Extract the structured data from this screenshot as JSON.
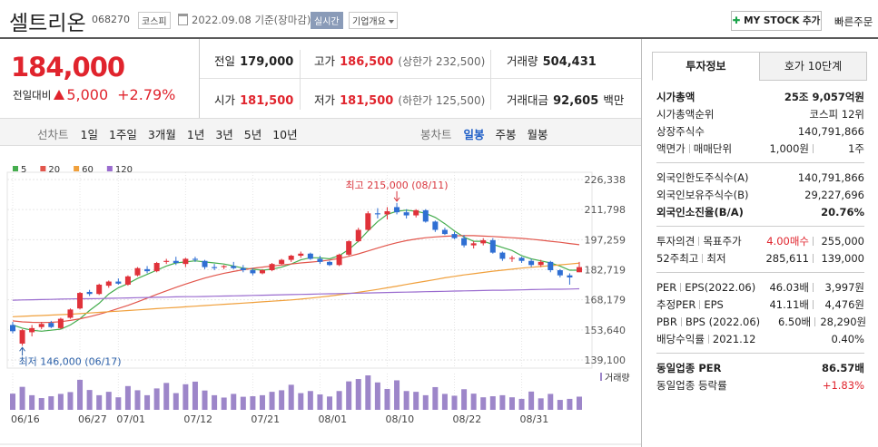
{
  "header": {
    "name": "셀트리온",
    "code": "068270",
    "market": "코스피",
    "date": "2022.09.08",
    "date_note": "기준(장마감)",
    "realtime": "실시간",
    "company_info": "기업개요",
    "my_stock": "MY STOCK 추가",
    "quick_order": "빠른주문"
  },
  "price": {
    "current": "184,000",
    "change_label": "전일대비",
    "change": "5,000",
    "rate": "+2.79%"
  },
  "quote": {
    "prev_close": {
      "label": "전일",
      "value": "179,000"
    },
    "high": {
      "label": "고가",
      "value": "186,500",
      "note": "(상한가 232,500)"
    },
    "volume": {
      "label": "거래량",
      "value": "504,431"
    },
    "open": {
      "label": "시가",
      "value": "181,500"
    },
    "low": {
      "label": "저가",
      "value": "181,500",
      "note": "(하한가 125,500)"
    },
    "amount": {
      "label": "거래대금",
      "value": "92,605",
      "unit": "백만"
    }
  },
  "periods": {
    "line_chart": "선차트",
    "line_options": [
      "1일",
      "1주일",
      "3개월",
      "1년",
      "3년",
      "5년",
      "10년"
    ],
    "candle_chart": "봉차트",
    "candle_options": [
      "일봉",
      "주봉",
      "월봉"
    ],
    "active_candle_option": 0
  },
  "chart_data": {
    "type": "candlestick",
    "x": [
      "06/16",
      null,
      null,
      null,
      null,
      null,
      null,
      "06/27",
      null,
      null,
      null,
      "07/01",
      null,
      null,
      null,
      null,
      null,
      null,
      "07/12",
      null,
      null,
      null,
      null,
      null,
      null,
      "07/21",
      null,
      null,
      null,
      null,
      null,
      null,
      "08/01",
      null,
      null,
      null,
      null,
      null,
      null,
      "08/10",
      null,
      null,
      null,
      null,
      null,
      null,
      "08/22",
      null,
      null,
      null,
      null,
      null,
      null,
      "08/31",
      null,
      null,
      null,
      null,
      null,
      null
    ],
    "open": [
      156000,
      147000,
      152500,
      155000,
      157000,
      154500,
      159500,
      164000,
      172000,
      171000,
      175000,
      177000,
      175500,
      180000,
      183000,
      182000,
      186500,
      187000,
      185500,
      188000,
      187000,
      184000,
      184000,
      184500,
      183500,
      182500,
      181000,
      182500,
      185500,
      187500,
      189500,
      190500,
      188000,
      186500,
      185000,
      190000,
      196500,
      202000,
      210000,
      209500,
      213000,
      210500,
      209000,
      211500,
      206000,
      202000,
      200000,
      198000,
      194500,
      195500,
      197000,
      191000,
      188000,
      188500,
      187000,
      185000,
      186500,
      182500,
      180000,
      181500
    ],
    "high": [
      157500,
      154000,
      156000,
      157500,
      158000,
      159500,
      164000,
      172000,
      173000,
      176000,
      177500,
      178500,
      180000,
      184000,
      184500,
      186500,
      188000,
      189000,
      188500,
      189000,
      187500,
      185500,
      185000,
      186500,
      185000,
      183500,
      183000,
      186000,
      188000,
      190000,
      191500,
      191000,
      189500,
      187000,
      190500,
      197000,
      203000,
      211000,
      212500,
      213000,
      215000,
      212000,
      212000,
      212000,
      206500,
      203000,
      201000,
      199500,
      196500,
      198000,
      198000,
      191500,
      189500,
      189000,
      188000,
      187500,
      187000,
      183000,
      181000,
      186500
    ],
    "low": [
      152000,
      146000,
      150500,
      154000,
      154500,
      154000,
      159000,
      163500,
      170000,
      170500,
      174000,
      175500,
      175000,
      179500,
      181000,
      181500,
      185500,
      185000,
      184000,
      186500,
      183000,
      182500,
      183000,
      183000,
      181500,
      180000,
      180500,
      182000,
      185000,
      186500,
      188500,
      187500,
      185500,
      184500,
      184500,
      189500,
      196000,
      201500,
      207500,
      207000,
      209500,
      207500,
      208000,
      205500,
      201000,
      199500,
      197500,
      193500,
      193000,
      194500,
      190500,
      187000,
      186500,
      186000,
      184000,
      184000,
      181500,
      179000,
      175500,
      181500
    ],
    "close": [
      153000,
      153500,
      154500,
      156500,
      155000,
      159000,
      163500,
      171500,
      171000,
      175500,
      177000,
      176000,
      179500,
      183500,
      182000,
      186000,
      187000,
      186000,
      188000,
      187500,
      184000,
      183500,
      184500,
      183500,
      182500,
      181000,
      182500,
      185500,
      187500,
      189500,
      190500,
      188000,
      186500,
      185000,
      190000,
      196500,
      202000,
      210000,
      209500,
      211000,
      210500,
      209000,
      211500,
      206000,
      202000,
      200000,
      198000,
      194500,
      195500,
      197000,
      191000,
      188000,
      188500,
      187000,
      185000,
      186500,
      182500,
      180000,
      179000,
      184000
    ],
    "up_color": "#e0323a",
    "down_color": "#2f6fd3",
    "series": [
      {
        "name": "5",
        "color": "#45ad4e",
        "values": [
          156000,
          154500,
          153500,
          153000,
          153500,
          154000,
          156000,
          159000,
          163000,
          166500,
          171000,
          174000,
          176000,
          178500,
          180500,
          182500,
          184500,
          186000,
          186500,
          187000,
          186500,
          186000,
          185500,
          184500,
          183500,
          183000,
          182500,
          183000,
          184000,
          185500,
          187500,
          188500,
          188500,
          188000,
          189500,
          192500,
          196500,
          201500,
          206000,
          209500,
          211000,
          211500,
          211000,
          210000,
          208000,
          205000,
          201500,
          198500,
          196500,
          196500,
          195000,
          193500,
          192000,
          189500,
          188000,
          187000,
          186000,
          184500,
          182500,
          182500
        ]
      },
      {
        "name": "20",
        "color": "#e2564c",
        "values": [
          158000,
          157500,
          157300,
          157200,
          157300,
          157600,
          158200,
          159000,
          160000,
          161200,
          162500,
          164000,
          165500,
          167200,
          169000,
          170800,
          172500,
          174200,
          175800,
          177300,
          178700,
          179900,
          181000,
          181900,
          182700,
          183400,
          184000,
          184500,
          185000,
          185500,
          186000,
          186400,
          186800,
          187400,
          188200,
          189200,
          190400,
          191800,
          193200,
          194600,
          195800,
          196800,
          197600,
          198200,
          198600,
          198900,
          199100,
          199200,
          199200,
          199000,
          198800,
          198500,
          198200,
          197900,
          197500,
          197000,
          196500,
          196000,
          195400,
          194800
        ]
      },
      {
        "name": "60",
        "color": "#f0a03c",
        "values": [
          160000,
          160200,
          160400,
          160600,
          160800,
          161000,
          161200,
          161500,
          161800,
          162100,
          162400,
          162700,
          163000,
          163300,
          163600,
          163900,
          164200,
          164500,
          164800,
          165100,
          165400,
          165700,
          166000,
          166300,
          166600,
          166900,
          167200,
          167500,
          167800,
          168100,
          168500,
          169000,
          169500,
          170000,
          170600,
          171200,
          171800,
          172500,
          173200,
          174000,
          174800,
          175600,
          176400,
          177200,
          178000,
          178800,
          179500,
          180200,
          180800,
          181400,
          182000,
          182500,
          183000,
          183500,
          183900,
          184300,
          184700,
          185100,
          185500,
          185900
        ]
      },
      {
        "name": "120",
        "color": "#9a6ccf",
        "values": [
          168000,
          168100,
          168200,
          168300,
          168400,
          168500,
          168600,
          168700,
          168700,
          168800,
          168900,
          169000,
          169100,
          169200,
          169300,
          169400,
          169500,
          169600,
          169700,
          169700,
          169800,
          169900,
          170000,
          170100,
          170200,
          170300,
          170400,
          170500,
          170600,
          170700,
          170800,
          170900,
          171000,
          171100,
          171200,
          171300,
          171400,
          171500,
          171600,
          171700,
          171800,
          171900,
          172000,
          172100,
          172200,
          172300,
          172400,
          172500,
          172600,
          172700,
          172800,
          172800,
          172900,
          173000,
          173100,
          173200,
          173300,
          173300,
          173400,
          173500
        ]
      }
    ],
    "volume": {
      "name": "거래량",
      "color": "#9d86c9",
      "values": [
        620000,
        880000,
        560000,
        450000,
        520000,
        610000,
        680000,
        1150000,
        760000,
        560000,
        690000,
        480000,
        910000,
        750000,
        560000,
        820000,
        1030000,
        640000,
        980000,
        1080000,
        740000,
        560000,
        470000,
        610000,
        500000,
        520000,
        560000,
        690000,
        750000,
        960000,
        640000,
        720000,
        590000,
        510000,
        720000,
        1090000,
        1180000,
        1320000,
        1050000,
        800000,
        1130000,
        720000,
        690000,
        560000,
        870000,
        610000,
        540000,
        790000,
        620000,
        480000,
        520000,
        560000,
        480000,
        420000,
        700000,
        440000,
        610000,
        380000,
        420000,
        504431
      ]
    },
    "ylim": [
      139100,
      226338
    ],
    "yticks": [
      {
        "value": 139100,
        "label": "139,100"
      },
      {
        "value": 153640,
        "label": "153,640"
      },
      {
        "value": 168179,
        "label": "168,179"
      },
      {
        "value": 182719,
        "label": "182,719"
      },
      {
        "value": 197259,
        "label": "197,259"
      },
      {
        "value": 211798,
        "label": "211,798"
      },
      {
        "value": 226338,
        "label": "226,338"
      }
    ],
    "grid": true,
    "annotations": [
      {
        "text": "최고 215,000 (08/11)",
        "anchor": "max",
        "color": "#d9363e"
      },
      {
        "text": "최저 146,000 (06/17)",
        "anchor": "min",
        "color": "#2a5fa8"
      }
    ]
  },
  "info": {
    "tabs": [
      "투자정보",
      "호가 10단계"
    ],
    "active_tab": 0,
    "sections": [
      [
        {
          "label": [
            "시가총액"
          ],
          "values": [
            "25조 9,057억원"
          ],
          "bold": true
        },
        {
          "label": [
            "시가총액순위"
          ],
          "values": [
            "코스피 12위"
          ]
        },
        {
          "label": [
            "상장주식수"
          ],
          "values": [
            "140,791,866"
          ]
        },
        {
          "label": [
            "액면가",
            "매매단위"
          ],
          "values": [
            "1,000원",
            "1주"
          ]
        }
      ],
      [
        {
          "label": [
            "외국인한도주식수(A)"
          ],
          "values": [
            "140,791,866"
          ]
        },
        {
          "label": [
            "외국인보유주식수(B)"
          ],
          "values": [
            "29,227,696"
          ]
        },
        {
          "label": [
            "외국인소진율(B/A)"
          ],
          "values": [
            "20.76%"
          ],
          "bold": true
        }
      ],
      [
        {
          "label": [
            "투자의견",
            "목표주가"
          ],
          "values": [
            "4.00매수",
            "255,000"
          ],
          "value_color": "#e0242d"
        },
        {
          "label": [
            "52주최고",
            "최저"
          ],
          "values": [
            "285,611",
            "139,000"
          ]
        }
      ],
      [
        {
          "label": [
            "PER",
            "EPS(2022.06)"
          ],
          "values": [
            "46.03배",
            "3,997원"
          ]
        },
        {
          "label": [
            "추정PER",
            "EPS"
          ],
          "values": [
            "41.11배",
            "4,476원"
          ]
        },
        {
          "label": [
            "PBR",
            "BPS (2022.06)"
          ],
          "values": [
            "6.50배",
            "28,290원"
          ]
        },
        {
          "label": [
            "배당수익률",
            "2021.12"
          ],
          "values": [
            "0.40%"
          ]
        }
      ],
      [
        {
          "label": [
            "동일업종 PER"
          ],
          "values": [
            "86.57배"
          ],
          "bold": true
        },
        {
          "label": [
            "동일업종 등락률"
          ],
          "values": [
            "+1.83%"
          ],
          "value_color": "#e0242d"
        }
      ]
    ]
  }
}
